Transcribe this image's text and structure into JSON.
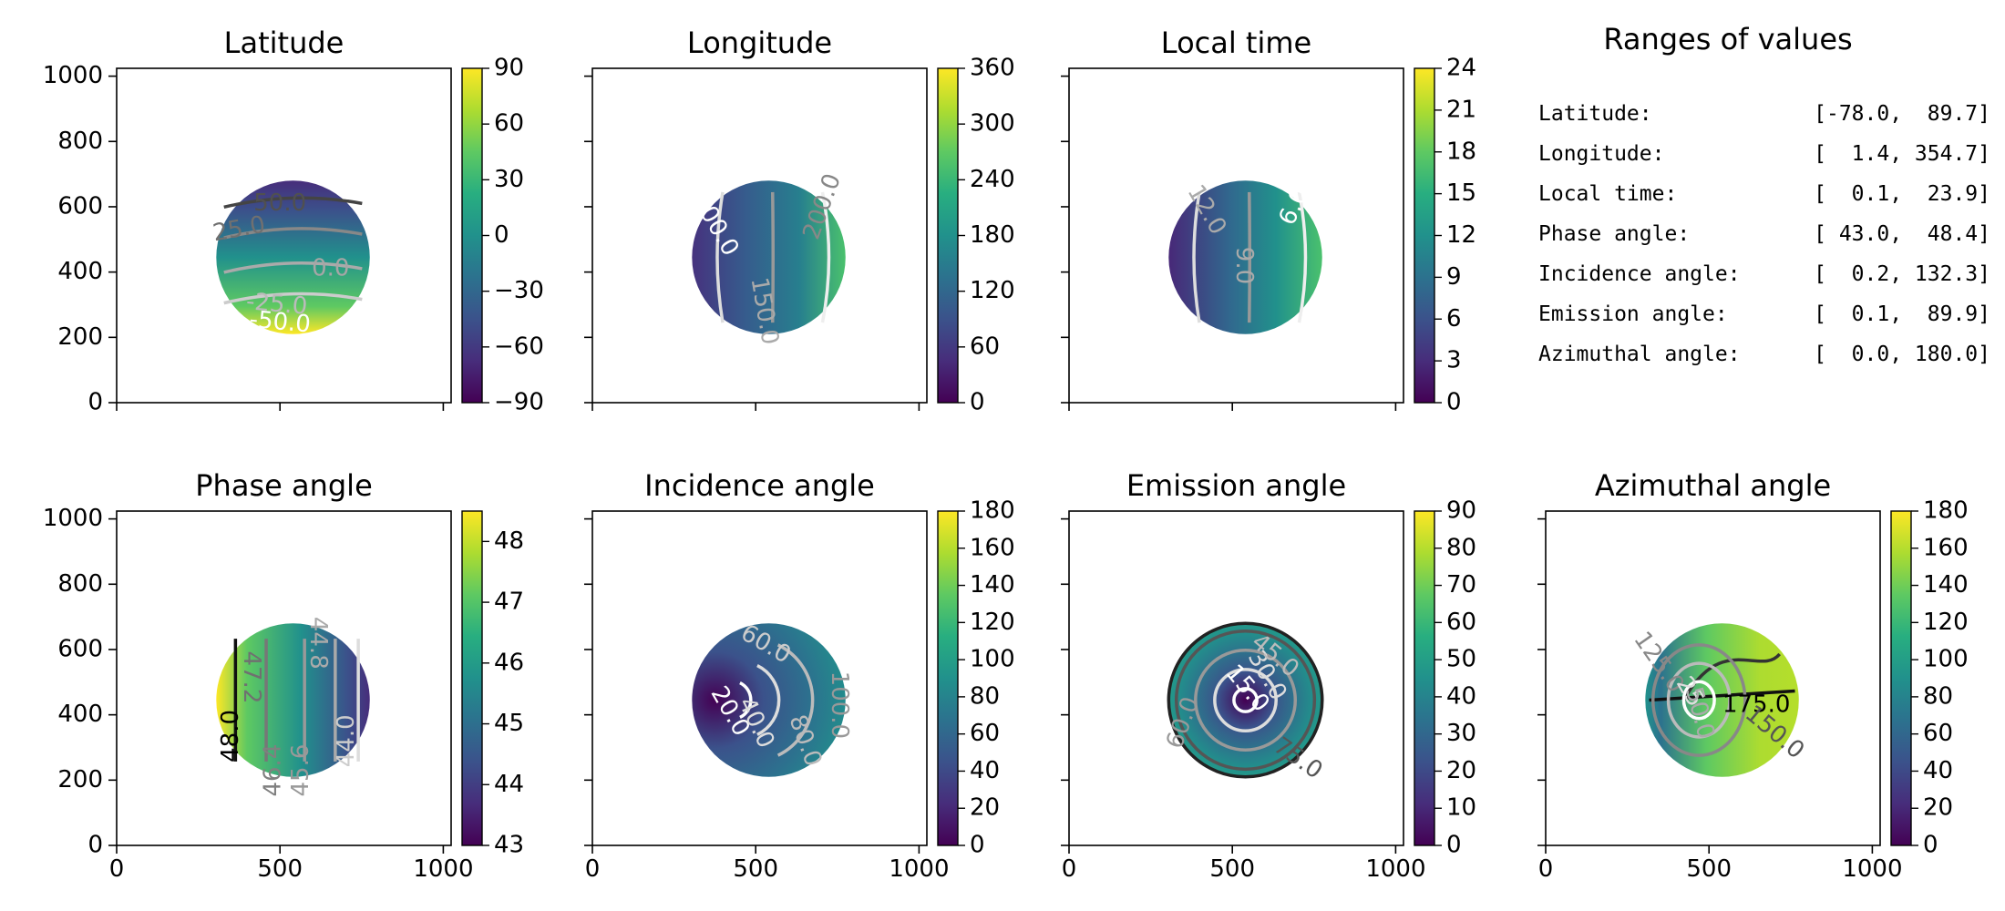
{
  "chart_data": [
    {
      "type": "heatmap",
      "title": "Latitude",
      "xlim": [
        0,
        1024
      ],
      "ylim": [
        0,
        1024
      ],
      "xticks": [],
      "yticks": [
        "0",
        "200",
        "400",
        "600",
        "800",
        "1000"
      ],
      "disk": {
        "cx": 540,
        "cy": 445,
        "r": 235
      },
      "colorbar": {
        "vmin": -90,
        "vmax": 90,
        "ticks": [
          "−90",
          "−60",
          "−30",
          "0",
          "30",
          "60",
          "90"
        ]
      },
      "contour_labels": [
        {
          "text": "50.0",
          "x": 500,
          "y": 610,
          "color": "#505050",
          "angle": 0
        },
        {
          "text": "25.0",
          "x": 375,
          "y": 530,
          "color": "#707070",
          "angle": 10
        },
        {
          "text": "0.0",
          "x": 655,
          "y": 410,
          "color": "#a6a6a6",
          "angle": 0
        },
        {
          "text": "-25.0",
          "x": 490,
          "y": 300,
          "color": "#bbbbbb",
          "angle": -5
        },
        {
          "text": "-50.0",
          "x": 500,
          "y": 245,
          "color": "#ffffff",
          "angle": -5
        }
      ]
    },
    {
      "type": "heatmap",
      "title": "Longitude",
      "xlim": [
        0,
        1024
      ],
      "ylim": [
        0,
        1024
      ],
      "xticks": [],
      "yticks": [],
      "disk": {
        "cx": 540,
        "cy": 445,
        "r": 235
      },
      "colorbar": {
        "vmin": 0,
        "vmax": 360,
        "ticks": [
          "0",
          "60",
          "120",
          "180",
          "240",
          "300",
          "360"
        ]
      },
      "contour_labels": [
        {
          "text": "100.0",
          "x": 375,
          "y": 545,
          "color": "#ffffff",
          "angle": -60
        },
        {
          "text": "150.0",
          "x": 525,
          "y": 280,
          "color": "#aaaaaa",
          "angle": -80
        },
        {
          "text": "200.0",
          "x": 705,
          "y": 600,
          "color": "#888888",
          "angle": 70
        }
      ]
    },
    {
      "type": "heatmap",
      "title": "Local time",
      "xlim": [
        0,
        1024
      ],
      "ylim": [
        0,
        1024
      ],
      "xticks": [],
      "yticks": [],
      "disk": {
        "cx": 540,
        "cy": 445,
        "r": 235
      },
      "colorbar": {
        "vmin": 0,
        "vmax": 24,
        "ticks": [
          "0",
          "3",
          "6",
          "9",
          "12",
          "15",
          "18",
          "21",
          "24"
        ]
      },
      "contour_labels": [
        {
          "text": "12.0",
          "x": 420,
          "y": 590,
          "color": "#aaaaaa",
          "angle": -60
        },
        {
          "text": "9.0",
          "x": 535,
          "y": 420,
          "color": "#aaaaaa",
          "angle": -90
        },
        {
          "text": "6.0",
          "x": 690,
          "y": 600,
          "color": "#ffffff",
          "angle": 65
        }
      ]
    },
    {
      "type": "heatmap",
      "title": "Phase angle",
      "xlim": [
        0,
        1024
      ],
      "ylim": [
        0,
        1024
      ],
      "xticks": [
        "0",
        "500",
        "1000"
      ],
      "yticks": [
        "0",
        "200",
        "400",
        "600",
        "800",
        "1000"
      ],
      "disk": {
        "cx": 540,
        "cy": 445,
        "r": 235
      },
      "colorbar": {
        "vmin": 43,
        "vmax": 48.5,
        "ticks": [
          "43",
          "44",
          "45",
          "46",
          "47",
          "48"
        ]
      },
      "contour_labels": [
        {
          "text": "47.2",
          "x": 412,
          "y": 515,
          "color": "#707070",
          "angle": -90
        },
        {
          "text": "48.0",
          "x": 350,
          "y": 335,
          "color": "#000000",
          "angle": 90
        },
        {
          "text": "44.8",
          "x": 615,
          "y": 620,
          "color": "#aaaaaa",
          "angle": -90
        },
        {
          "text": "45.6",
          "x": 565,
          "y": 230,
          "color": "#999999",
          "angle": 90
        },
        {
          "text": "46.4",
          "x": 480,
          "y": 230,
          "color": "#808080",
          "angle": 90
        },
        {
          "text": "44.0",
          "x": 705,
          "y": 320,
          "color": "#cccccc",
          "angle": 90
        }
      ]
    },
    {
      "type": "heatmap",
      "title": "Incidence angle",
      "xlim": [
        0,
        1024
      ],
      "ylim": [
        0,
        1024
      ],
      "xticks": [
        "0",
        "500",
        "1000"
      ],
      "yticks": [],
      "disk": {
        "cx": 540,
        "cy": 445,
        "r": 235
      },
      "colorbar": {
        "vmin": 0,
        "vmax": 180,
        "ticks": [
          "0",
          "20",
          "40",
          "60",
          "80",
          "100",
          "120",
          "140",
          "160",
          "180"
        ]
      },
      "contour_labels": [
        {
          "text": "20.0",
          "x": 420,
          "y": 410,
          "color": "#ffffff",
          "angle": -60
        },
        {
          "text": "40.0",
          "x": 500,
          "y": 375,
          "color": "#dddddd",
          "angle": -65
        },
        {
          "text": "60.0",
          "x": 530,
          "y": 615,
          "color": "#cccccc",
          "angle": -30
        },
        {
          "text": "80.0",
          "x": 650,
          "y": 320,
          "color": "#bbbbbb",
          "angle": -70
        },
        {
          "text": "100.0",
          "x": 755,
          "y": 430,
          "color": "#999999",
          "angle": -90
        }
      ]
    },
    {
      "type": "heatmap",
      "title": "Emission angle",
      "xlim": [
        0,
        1024
      ],
      "ylim": [
        0,
        1024
      ],
      "xticks": [
        "0",
        "500",
        "1000"
      ],
      "yticks": [],
      "disk": {
        "cx": 540,
        "cy": 445,
        "r": 235
      },
      "colorbar": {
        "vmin": 0,
        "vmax": 90,
        "ticks": [
          "0",
          "10",
          "20",
          "30",
          "40",
          "50",
          "60",
          "70",
          "80",
          "90"
        ]
      },
      "contour_labels": [
        {
          "text": "15.0",
          "x": 545,
          "y": 480,
          "color": "#ffffff",
          "angle": -50
        },
        {
          "text": "30.0",
          "x": 605,
          "y": 520,
          "color": "#dddddd",
          "angle": -60
        },
        {
          "text": "45.0",
          "x": 630,
          "y": 580,
          "color": "#bbbbbb",
          "angle": -40
        },
        {
          "text": "60.0",
          "x": 350,
          "y": 375,
          "color": "#999999",
          "angle": 70
        },
        {
          "text": "75.0",
          "x": 700,
          "y": 265,
          "color": "#555555",
          "angle": -35
        }
      ]
    },
    {
      "type": "heatmap",
      "title": "Azimuthal angle",
      "xlim": [
        0,
        1024
      ],
      "ylim": [
        0,
        1024
      ],
      "xticks": [
        "0",
        "500",
        "1000"
      ],
      "yticks": [],
      "disk": {
        "cx": 540,
        "cy": 445,
        "r": 235
      },
      "colorbar": {
        "vmin": 0,
        "vmax": 180,
        "ticks": [
          "0",
          "20",
          "40",
          "60",
          "80",
          "100",
          "120",
          "140",
          "160",
          "180"
        ]
      },
      "contour_labels": [
        {
          "text": "125.0",
          "x": 345,
          "y": 560,
          "color": "#888888",
          "angle": -55
        },
        {
          "text": "25",
          "x": 440,
          "y": 470,
          "color": "#dddddd",
          "angle": -60
        },
        {
          "text": "50.0",
          "x": 470,
          "y": 405,
          "color": "#aaaaaa",
          "angle": -75
        },
        {
          "text": "175.0",
          "x": 645,
          "y": 430,
          "color": "#000000",
          "angle": 0
        },
        {
          "text": "150.0",
          "x": 700,
          "y": 345,
          "color": "#555555",
          "angle": -40
        }
      ]
    }
  ],
  "ranges_panel": {
    "title": "Ranges of values",
    "rows": [
      {
        "label": "Latitude:",
        "value": "[-78.0,  89.7]"
      },
      {
        "label": "Longitude:",
        "value": "[  1.4, 354.7]"
      },
      {
        "label": "Local time:",
        "value": "[  0.1,  23.9]"
      },
      {
        "label": "Phase angle:",
        "value": "[ 43.0,  48.4]"
      },
      {
        "label": "Incidence angle:",
        "value": "[  0.2, 132.3]"
      },
      {
        "label": "Emission angle:",
        "value": "[  0.1,  89.9]"
      },
      {
        "label": "Azimuthal angle:",
        "value": "[  0.0, 180.0]"
      }
    ]
  }
}
